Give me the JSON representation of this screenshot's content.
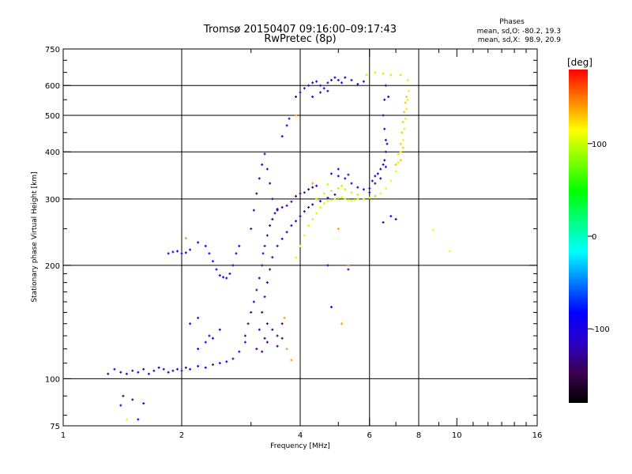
{
  "chart_data": {
    "type": "scatter",
    "title": "Tromsø 20150407 09:16:00–09:17:43",
    "subtitle": "RwPretec (8p)",
    "xlabel": "Frequency [MHz]",
    "ylabel": "Stationary phase Virtual Height [km]",
    "x_scale": "log",
    "y_scale": "log",
    "xlim": [
      1,
      16
    ],
    "ylim": [
      75,
      750
    ],
    "grid": true,
    "x_ticks": [
      1,
      2,
      4,
      6,
      8,
      10,
      16
    ],
    "x_tick_labels": [
      "1",
      "2",
      "4",
      "6",
      "8",
      "10",
      "16"
    ],
    "x_grid": [
      2,
      4,
      6,
      8
    ],
    "y_ticks": [
      75,
      100,
      200,
      300,
      400,
      500,
      600,
      750
    ],
    "y_tick_labels": [
      "75",
      "100",
      "200",
      "300",
      "400",
      "500",
      "600",
      "750"
    ],
    "y_grid": [
      100,
      200,
      300,
      400,
      500,
      600
    ],
    "legend": {
      "title": "Phases",
      "line1": "mean, sd,O: -80.2, 19.3",
      "line2": "mean, sd,X:  98.9, 20.9"
    },
    "colorbar": {
      "label": "[deg]",
      "range": [
        -180,
        180
      ],
      "ticks": [
        100,
        0,
        -100
      ],
      "tick_labels": [
        "100",
        "0",
        "-100"
      ],
      "colormap": [
        "#000000",
        "#3c0050",
        "#2a00c8",
        "#0000ff",
        "#0080ff",
        "#00ffff",
        "#00ff80",
        "#00ff00",
        "#80ff00",
        "#ffff00",
        "#ff8000",
        "#ff0000"
      ]
    },
    "series": [
      {
        "phase": -105,
        "points": [
          [
            1.5,
            105
          ],
          [
            1.55,
            104
          ],
          [
            1.6,
            106
          ],
          [
            1.65,
            103
          ],
          [
            1.7,
            105
          ],
          [
            1.75,
            107
          ],
          [
            1.8,
            106
          ],
          [
            1.85,
            104
          ],
          [
            1.9,
            105
          ],
          [
            1.95,
            106
          ],
          [
            2.0,
            105
          ],
          [
            2.05,
            107
          ],
          [
            2.1,
            106
          ],
          [
            2.2,
            108
          ],
          [
            2.3,
            107
          ],
          [
            2.4,
            109
          ],
          [
            2.5,
            110
          ],
          [
            2.6,
            111
          ],
          [
            2.7,
            113
          ],
          [
            2.8,
            118
          ],
          [
            2.9,
            125
          ]
        ]
      },
      {
        "phase": -110,
        "points": [
          [
            1.3,
            103
          ],
          [
            1.35,
            106
          ],
          [
            1.4,
            104
          ],
          [
            1.45,
            103
          ],
          [
            1.42,
            90
          ],
          [
            1.5,
            88
          ],
          [
            1.6,
            86
          ],
          [
            1.55,
            78
          ],
          [
            1.4,
            85
          ]
        ]
      },
      {
        "phase": -125,
        "points": [
          [
            2.9,
            130
          ],
          [
            2.95,
            140
          ],
          [
            3.0,
            150
          ],
          [
            3.05,
            160
          ],
          [
            3.1,
            172
          ],
          [
            3.15,
            185
          ],
          [
            3.2,
            200
          ],
          [
            3.22,
            215
          ],
          [
            3.25,
            225
          ],
          [
            3.3,
            240
          ],
          [
            3.35,
            255
          ],
          [
            3.4,
            265
          ],
          [
            3.45,
            275
          ],
          [
            3.5,
            282
          ],
          [
            3.6,
            285
          ],
          [
            3.7,
            288
          ],
          [
            3.8,
            295
          ],
          [
            3.9,
            305
          ],
          [
            4.0,
            310
          ],
          [
            4.1,
            312
          ],
          [
            4.2,
            318
          ],
          [
            4.3,
            322
          ],
          [
            4.4,
            325
          ]
        ]
      },
      {
        "phase": -115,
        "points": [
          [
            3.1,
            120
          ],
          [
            3.15,
            135
          ],
          [
            3.2,
            150
          ],
          [
            3.25,
            165
          ],
          [
            3.3,
            180
          ],
          [
            3.35,
            195
          ],
          [
            3.4,
            210
          ],
          [
            3.5,
            225
          ],
          [
            3.6,
            235
          ],
          [
            3.7,
            245
          ],
          [
            3.8,
            255
          ],
          [
            3.9,
            262
          ],
          [
            4.0,
            270
          ],
          [
            4.1,
            278
          ],
          [
            4.2,
            285
          ],
          [
            4.3,
            290
          ],
          [
            4.5,
            296
          ],
          [
            4.7,
            302
          ],
          [
            4.9,
            308
          ]
        ]
      },
      {
        "phase": -140,
        "points": [
          [
            3.3,
            140
          ],
          [
            3.4,
            135
          ],
          [
            3.5,
            130
          ],
          [
            3.6,
            128
          ],
          [
            3.3,
            125
          ],
          [
            3.5,
            122
          ],
          [
            3.6,
            140
          ],
          [
            3.2,
            118
          ],
          [
            3.25,
            128
          ]
        ]
      },
      {
        "phase": -120,
        "points": [
          [
            3.0,
            250
          ],
          [
            3.05,
            280
          ],
          [
            3.1,
            310
          ],
          [
            3.15,
            340
          ],
          [
            3.2,
            370
          ],
          [
            3.25,
            395
          ],
          [
            3.3,
            360
          ],
          [
            3.35,
            330
          ],
          [
            3.4,
            300
          ],
          [
            3.5,
            280
          ]
        ]
      },
      {
        "phase": -105,
        "points": [
          [
            3.6,
            440
          ],
          [
            3.7,
            470
          ],
          [
            3.75,
            490
          ],
          [
            3.9,
            560
          ],
          [
            4.0,
            575
          ],
          [
            4.1,
            590
          ],
          [
            4.2,
            600
          ],
          [
            4.3,
            610
          ],
          [
            4.4,
            615
          ],
          [
            4.5,
            600
          ],
          [
            4.6,
            590
          ],
          [
            4.7,
            610
          ],
          [
            4.8,
            620
          ],
          [
            4.9,
            630
          ],
          [
            5.0,
            620
          ],
          [
            5.1,
            610
          ],
          [
            5.2,
            630
          ],
          [
            5.4,
            620
          ],
          [
            5.6,
            605
          ],
          [
            5.8,
            615
          ],
          [
            4.3,
            560
          ],
          [
            4.5,
            575
          ],
          [
            4.7,
            580
          ]
        ]
      },
      {
        "phase": -110,
        "points": [
          [
            6.5,
            500
          ],
          [
            6.55,
            460
          ],
          [
            6.6,
            430
          ],
          [
            6.6,
            400
          ],
          [
            6.55,
            380
          ],
          [
            6.5,
            370
          ],
          [
            6.4,
            360
          ],
          [
            6.3,
            350
          ],
          [
            6.2,
            345
          ],
          [
            6.1,
            335
          ],
          [
            6.0,
            320
          ],
          [
            6.2,
            330
          ],
          [
            6.4,
            340
          ],
          [
            6.6,
            365
          ],
          [
            6.65,
            420
          ],
          [
            6.7,
            560
          ],
          [
            6.6,
            600
          ],
          [
            6.55,
            550
          ]
        ]
      },
      {
        "phase": -110,
        "points": [
          [
            4.8,
            350
          ],
          [
            5.0,
            345
          ],
          [
            5.2,
            340
          ],
          [
            5.4,
            330
          ],
          [
            5.6,
            322
          ],
          [
            5.8,
            318
          ],
          [
            6.0,
            312
          ],
          [
            6.2,
            305
          ],
          [
            5.0,
            360
          ],
          [
            5.3,
            348
          ]
        ]
      },
      {
        "phase": -90,
        "points": [
          [
            1.85,
            215
          ],
          [
            1.9,
            217
          ],
          [
            1.95,
            218
          ],
          [
            2.0,
            215
          ],
          [
            2.05,
            216
          ],
          [
            2.1,
            220
          ],
          [
            2.2,
            230
          ],
          [
            2.3,
            225
          ],
          [
            2.35,
            215
          ],
          [
            2.4,
            205
          ],
          [
            2.45,
            195
          ],
          [
            2.5,
            188
          ],
          [
            2.55,
            186
          ],
          [
            2.6,
            185
          ],
          [
            2.65,
            190
          ],
          [
            2.7,
            200
          ],
          [
            2.75,
            215
          ],
          [
            2.8,
            225
          ]
        ]
      },
      {
        "phase": -95,
        "points": [
          [
            2.3,
            125
          ],
          [
            2.35,
            130
          ],
          [
            2.4,
            128
          ],
          [
            2.2,
            120
          ],
          [
            2.5,
            135
          ],
          [
            2.1,
            140
          ],
          [
            2.2,
            145
          ]
        ]
      },
      {
        "phase": 105,
        "points": [
          [
            3.9,
            210
          ],
          [
            4.0,
            225
          ],
          [
            4.1,
            240
          ],
          [
            4.2,
            255
          ],
          [
            4.3,
            265
          ],
          [
            4.4,
            275
          ],
          [
            4.5,
            285
          ],
          [
            4.6,
            292
          ],
          [
            4.7,
            296
          ],
          [
            4.8,
            298
          ],
          [
            4.9,
            300
          ],
          [
            5.0,
            302
          ],
          [
            5.1,
            303
          ],
          [
            5.2,
            300
          ],
          [
            5.3,
            298
          ],
          [
            5.4,
            297
          ],
          [
            5.5,
            298
          ],
          [
            5.6,
            300
          ],
          [
            5.8,
            300
          ],
          [
            6.0,
            302
          ],
          [
            6.2,
            305
          ],
          [
            6.4,
            310
          ],
          [
            6.6,
            320
          ],
          [
            6.8,
            335
          ],
          [
            7.0,
            355
          ],
          [
            7.1,
            375
          ],
          [
            7.2,
            400
          ],
          [
            7.3,
            430
          ],
          [
            7.35,
            460
          ],
          [
            7.4,
            490
          ],
          [
            7.45,
            520
          ],
          [
            7.5,
            550
          ],
          [
            7.55,
            580
          ],
          [
            7.5,
            620
          ]
        ]
      },
      {
        "phase": 130,
        "points": [
          [
            7.0,
            370
          ],
          [
            7.1,
            395
          ],
          [
            7.2,
            420
          ],
          [
            7.25,
            450
          ],
          [
            7.3,
            480
          ],
          [
            7.35,
            510
          ],
          [
            7.4,
            540
          ],
          [
            7.45,
            560
          ],
          [
            7.2,
            380
          ],
          [
            7.3,
            410
          ]
        ]
      },
      {
        "phase": 95,
        "points": [
          [
            4.6,
            310
          ],
          [
            4.8,
            315
          ],
          [
            5.0,
            320
          ],
          [
            5.2,
            318
          ],
          [
            5.4,
            312
          ],
          [
            5.6,
            308
          ],
          [
            4.4,
            300
          ],
          [
            4.7,
            328
          ],
          [
            5.1,
            325
          ],
          [
            5.9,
            640
          ],
          [
            6.2,
            650
          ],
          [
            6.5,
            645
          ],
          [
            6.8,
            640
          ],
          [
            7.2,
            640
          ]
        ]
      },
      {
        "phase": 140,
        "points": [
          [
            5.1,
            140
          ],
          [
            3.7,
            120
          ],
          [
            3.65,
            145
          ],
          [
            3.8,
            112
          ],
          [
            2.05,
            236
          ],
          [
            5.0,
            250
          ],
          [
            5.3,
            200
          ],
          [
            3.9,
            500
          ],
          [
            4.3,
            330
          ]
        ]
      },
      {
        "phase": 110,
        "points": [
          [
            8.7,
            248
          ],
          [
            9.6,
            218
          ],
          [
            1.45,
            78
          ]
        ]
      },
      {
        "phase": -100,
        "points": [
          [
            4.8,
            155
          ],
          [
            4.7,
            200
          ],
          [
            5.3,
            195
          ],
          [
            6.5,
            260
          ],
          [
            6.8,
            270
          ],
          [
            7.0,
            265
          ]
        ]
      }
    ]
  }
}
